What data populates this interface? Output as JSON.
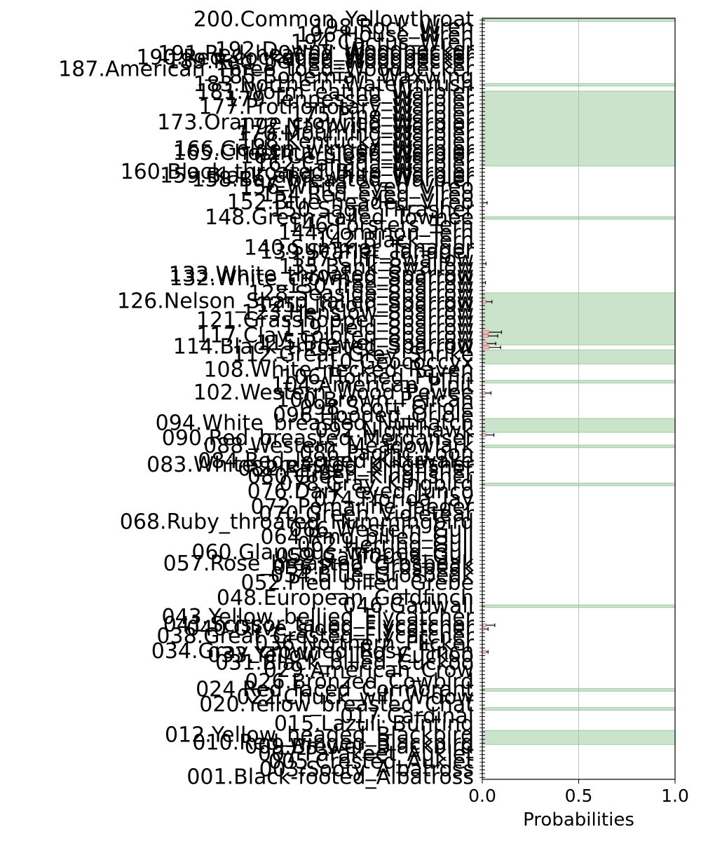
{
  "chart_data": {
    "type": "bar",
    "orientation": "horizontal",
    "xlabel": "Probabilities",
    "ylabel": "",
    "xlim": [
      0.0,
      1.0
    ],
    "x_ticks": [
      0.0,
      0.5,
      1.0
    ],
    "x_tick_labels": [
      "0.0",
      "0.5",
      "1.0"
    ],
    "grid": "vertical",
    "category_numbers": [
      1,
      2,
      3,
      4,
      5,
      6,
      7,
      8,
      9,
      10,
      11,
      12,
      13,
      14,
      15,
      16,
      17,
      18,
      19,
      20,
      21,
      22,
      23,
      24,
      25,
      26,
      27,
      28,
      29,
      30,
      31,
      32,
      33,
      34,
      35,
      36,
      37,
      38,
      39,
      40,
      41,
      42,
      43,
      44,
      45,
      46,
      47,
      48,
      49,
      50,
      51,
      52,
      53,
      54,
      55,
      56,
      57,
      58,
      59,
      60,
      61,
      62,
      63,
      64,
      65,
      66,
      67,
      68,
      69,
      70,
      71,
      72,
      73,
      74,
      75,
      76,
      77,
      78,
      79,
      80,
      81,
      82,
      83,
      84,
      85,
      86,
      87,
      88,
      89,
      90,
      91,
      92,
      93,
      94,
      95,
      96,
      97,
      98,
      99,
      100,
      101,
      102,
      103,
      104,
      105,
      106,
      107,
      108,
      109,
      110,
      111,
      112,
      113,
      114,
      115,
      116,
      117,
      118,
      119,
      120,
      121,
      122,
      123,
      124,
      125,
      126,
      127,
      128,
      129,
      130,
      131,
      132,
      133,
      134,
      135,
      136,
      137,
      138,
      139,
      140,
      141,
      142,
      143,
      144,
      145,
      146,
      147,
      148,
      149,
      150,
      151,
      152,
      153,
      154,
      155,
      156,
      157,
      158,
      159,
      160,
      161,
      162,
      163,
      164,
      165,
      166,
      167,
      168,
      169,
      170,
      171,
      172,
      173,
      174,
      175,
      176,
      177,
      178,
      179,
      180,
      181,
      182,
      183,
      184,
      185,
      186,
      187,
      188,
      189,
      190,
      191,
      192,
      193,
      194,
      195,
      196,
      197,
      198,
      199,
      200
    ],
    "labels": [
      {
        "n": 1,
        "text": "001.Black-footed_Albatross"
      },
      {
        "n": 3,
        "text": "003.Sooty_Albatross"
      },
      {
        "n": 5,
        "text": "005.Crested_Auklet"
      },
      {
        "n": 7,
        "text": "007.Parakeet_Auklet"
      },
      {
        "n": 9,
        "text": "009.Brewer_Blackbird"
      },
      {
        "n": 10,
        "text": "010.Red_winged_Blackbird"
      },
      {
        "n": 12,
        "text": "012.Yellow_headed_Blackbird"
      },
      {
        "n": 15,
        "text": "015.Lazuli_Bunting"
      },
      {
        "n": 17,
        "text": "017.Cardinal"
      },
      {
        "n": 20,
        "text": "020.Yellow_breasted_Chat"
      },
      {
        "n": 22,
        "text": "022.Chuck_will_Widow"
      },
      {
        "n": 24,
        "text": "024.Red_faced_Cormorant"
      },
      {
        "n": 26,
        "text": "026.Bronzed_Cowbird"
      },
      {
        "n": 29,
        "text": "029.American_Crow"
      },
      {
        "n": 31,
        "text": "031.Black_billed_Cuckoo"
      },
      {
        "n": 33,
        "text": "033.Yellow_billed_Cuckoo"
      },
      {
        "n": 34,
        "text": "034.Gray_crowned_Rosy_Finch"
      },
      {
        "n": 36,
        "text": "036.Northern_Flicker"
      },
      {
        "n": 38,
        "text": "038.Great_Crested_Flycatcher"
      },
      {
        "n": 40,
        "text": "040.Olive_sided_Flycatcher"
      },
      {
        "n": 41,
        "text": "041.Scissor_tailed_Flycatcher"
      },
      {
        "n": 43,
        "text": "043.Yellow_bellied_Flycatcher"
      },
      {
        "n": 46,
        "text": "046.Gadwall"
      },
      {
        "n": 48,
        "text": "048.European_Goldfinch"
      },
      {
        "n": 52,
        "text": "052.Pied_billed_Grebe"
      },
      {
        "n": 54,
        "text": "054.Blue_Grosbeak"
      },
      {
        "n": 56,
        "text": "056.Pine_Grosbeak"
      },
      {
        "n": 57,
        "text": "057.Rose_breasted_Grosbeak"
      },
      {
        "n": 59,
        "text": "059.California_Gull"
      },
      {
        "n": 60,
        "text": "060.Glaucous_winged_Gull"
      },
      {
        "n": 62,
        "text": "062.Herring_Gull"
      },
      {
        "n": 64,
        "text": "064.Ring_billed_Gull"
      },
      {
        "n": 66,
        "text": "066.Western_Gull"
      },
      {
        "n": 68,
        "text": "068.Ruby_throated_Hummingbird"
      },
      {
        "n": 70,
        "text": "070.Green_Violetear"
      },
      {
        "n": 72,
        "text": "072.Pomarine_Jaeger"
      },
      {
        "n": 74,
        "text": "074.Florida_Jay"
      },
      {
        "n": 76,
        "text": "076.Dark_eyed_Junco"
      },
      {
        "n": 78,
        "text": "078.Gray_Kingbird"
      },
      {
        "n": 80,
        "text": "080.Green_Kingfisher"
      },
      {
        "n": 82,
        "text": "082.Ringed_Kingfisher"
      },
      {
        "n": 83,
        "text": "083.White_breasted_Kingfisher"
      },
      {
        "n": 84,
        "text": "084.Red_legged_Kittiwake"
      },
      {
        "n": 86,
        "text": "086.Pacific_Loon"
      },
      {
        "n": 88,
        "text": "088.Western_Meadowlark"
      },
      {
        "n": 90,
        "text": "090.Red_breasted_Merganser"
      },
      {
        "n": 92,
        "text": "092.Nighthawk"
      },
      {
        "n": 94,
        "text": "094.White_breasted_Nuthatch"
      },
      {
        "n": 96,
        "text": "096.Hooded_Oriole"
      },
      {
        "n": 98,
        "text": "098.Scott_Oriole"
      },
      {
        "n": 100,
        "text": "100.Brown_Pelican"
      },
      {
        "n": 102,
        "text": "102.Western_Wood_Pewee"
      },
      {
        "n": 104,
        "text": "104.American_Pipit"
      },
      {
        "n": 106,
        "text": "106.Horned_Puffin"
      },
      {
        "n": 108,
        "text": "108.White_necked_Raven"
      },
      {
        "n": 110,
        "text": "110.Geococcyx"
      },
      {
        "n": 112,
        "text": "112.Great_Grey_Shrike"
      },
      {
        "n": 114,
        "text": "114.Black_throated_Sparrow"
      },
      {
        "n": 115,
        "text": "115.Brewer_Sparrow"
      },
      {
        "n": 117,
        "text": "117.Clay_colored_Sparrow"
      },
      {
        "n": 119,
        "text": "119.Field_Sparrow"
      },
      {
        "n": 121,
        "text": "121.Grasshopper_Sparrow"
      },
      {
        "n": 123,
        "text": "123.Henslow_Sparrow"
      },
      {
        "n": 125,
        "text": "125.Lincoln_Sparrow"
      },
      {
        "n": 126,
        "text": "126.Nelson_Sharp_tailed_Sparrow"
      },
      {
        "n": 128,
        "text": "128.Seaside_Sparrow"
      },
      {
        "n": 130,
        "text": "130.Tree_Sparrow"
      },
      {
        "n": 132,
        "text": "132.White_crowned_Sparrow"
      },
      {
        "n": 133,
        "text": "133.White_throated_Sparrow"
      },
      {
        "n": 135,
        "text": "135.Bank_Swallow"
      },
      {
        "n": 137,
        "text": "137.Cliff_Swallow"
      },
      {
        "n": 139,
        "text": "139.Scarlet_Tanager"
      },
      {
        "n": 140,
        "text": "140.Summer_Tanager"
      },
      {
        "n": 142,
        "text": "142.Black_Tern"
      },
      {
        "n": 144,
        "text": "144.Common_Tern"
      },
      {
        "n": 146,
        "text": "146.Forsters_Tern"
      },
      {
        "n": 148,
        "text": "148.Green_tailed_Towhee"
      },
      {
        "n": 150,
        "text": "150.Sage_Thrasher"
      },
      {
        "n": 152,
        "text": "152.Blue_headed_Vireo"
      },
      {
        "n": 154,
        "text": "154.Red_eyed_Vireo"
      },
      {
        "n": 156,
        "text": "156.White_eyed_Vireo"
      },
      {
        "n": 158,
        "text": "158.Bay_breasted_Warbler"
      },
      {
        "n": 159,
        "text": "159.Black_and_white_Warbler"
      },
      {
        "n": 160,
        "text": "160.Black_throated_Blue_Warbler"
      },
      {
        "n": 162,
        "text": "162.Canada_Warbler"
      },
      {
        "n": 164,
        "text": "164.Cerulean_Warbler"
      },
      {
        "n": 165,
        "text": "165.Chestnut_sided_Warbler"
      },
      {
        "n": 166,
        "text": "166.Golden_winged_Warbler"
      },
      {
        "n": 168,
        "text": "168.Kentucky_Warbler"
      },
      {
        "n": 170,
        "text": "170.Mourning_Warbler"
      },
      {
        "n": 172,
        "text": "172.Nashville_Warbler"
      },
      {
        "n": 173,
        "text": "173.Orange_crowned_Warbler"
      },
      {
        "n": 175,
        "text": "175.Pine_Warbler"
      },
      {
        "n": 177,
        "text": "177.Prothonotary_Warbler"
      },
      {
        "n": 179,
        "text": "179.Tennessee_Warbler"
      },
      {
        "n": 181,
        "text": "181.Worm_eating_Warbler"
      },
      {
        "n": 183,
        "text": "183.Northern_Waterthrush"
      },
      {
        "n": 185,
        "text": "185.Bohemian_Waxwing"
      },
      {
        "n": 187,
        "text": "187.American_Three_toed_Woodpecker"
      },
      {
        "n": 189,
        "text": "189.Red_bellied_Woodpecker"
      },
      {
        "n": 190,
        "text": "190.Red_cockaded_Woodpecker"
      },
      {
        "n": 191,
        "text": "191.Red_headed_Woodpecker"
      },
      {
        "n": 192,
        "text": "192.Downy_Woodpecker"
      },
      {
        "n": 194,
        "text": "194.Cactus_Wren"
      },
      {
        "n": 196,
        "text": "196.House_Wren"
      },
      {
        "n": 198,
        "text": "198.Rock_Wren"
      },
      {
        "n": 200,
        "text": "200.Common_Yellowthroat"
      }
    ],
    "highlight_bands": [
      {
        "from": 200,
        "to": 200
      },
      {
        "from": 183,
        "to": 183
      },
      {
        "from": 162,
        "to": 181
      },
      {
        "from": 148,
        "to": 148
      },
      {
        "from": 115,
        "to": 128
      },
      {
        "from": 110,
        "to": 113
      },
      {
        "from": 105,
        "to": 105
      },
      {
        "from": 92,
        "to": 95
      },
      {
        "from": 88,
        "to": 88
      },
      {
        "from": 78,
        "to": 78
      },
      {
        "from": 46,
        "to": 46
      },
      {
        "from": 24,
        "to": 24
      },
      {
        "from": 19,
        "to": 19
      },
      {
        "from": 10,
        "to": 13
      }
    ],
    "bars": [
      {
        "n": 126,
        "value": 0.02,
        "err": 0.03
      },
      {
        "n": 131,
        "value": 0.004,
        "err": 0.012
      },
      {
        "n": 118,
        "value": 0.035,
        "err": 0.065
      },
      {
        "n": 117,
        "value": 0.03,
        "err": 0.05
      },
      {
        "n": 114,
        "value": 0.035,
        "err": 0.06
      },
      {
        "n": 115,
        "value": 0.025,
        "err": 0.045
      },
      {
        "n": 102,
        "value": 0.015,
        "err": 0.03
      },
      {
        "n": 91,
        "value": 0.02,
        "err": 0.04
      },
      {
        "n": 41,
        "value": 0.02,
        "err": 0.045
      },
      {
        "n": 40,
        "value": 0.01,
        "err": 0.02
      },
      {
        "n": 34,
        "value": 0.02,
        "err": 0.01
      },
      {
        "n": 152,
        "value": 0.005,
        "err": 0.02
      },
      {
        "n": 136,
        "value": 0.004,
        "err": 0.015
      }
    ],
    "band_color": "#2e8b2e",
    "bar_color": "#f4b8b8"
  }
}
